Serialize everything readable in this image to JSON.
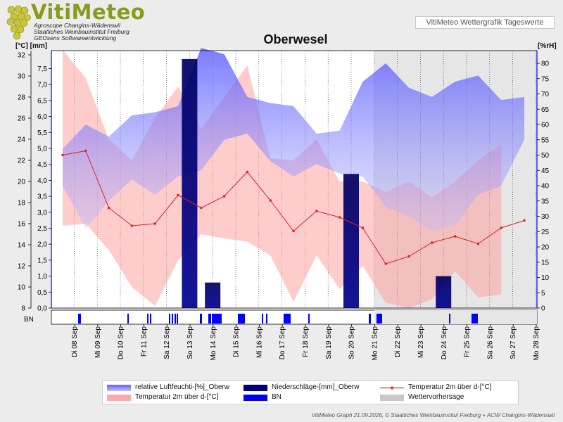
{
  "header": {
    "logo_text": "VitiMeteo",
    "logo_sub1": "Agroscope Changins-Wädenswil",
    "logo_sub2": "Staatliches Weinbauinstitut Freiburg",
    "logo_sub3": "GEOsens Softwareentwicklung",
    "app_title": "VitiMeteo Wettergrafik Tageswerte"
  },
  "footer": "VitiMeteo Graph 21.09.2026, © Staatliches Weinbauinstitut Freiburg + ACW Changins-Wädenswil",
  "chart_data": {
    "type": "combined",
    "title": "Oberwesel",
    "units": {
      "temp_precip": "[°C] [mm]",
      "humidity": "[%rH]"
    },
    "y_temp_ticks": [
      8,
      10,
      12,
      14,
      16,
      18,
      20,
      22,
      24,
      26,
      28,
      30,
      32
    ],
    "y_precip_ticks": [
      "0,0",
      "0,5",
      "1,0",
      "1,5",
      "2,0",
      "2,5",
      "3,0",
      "3,5",
      "4,0",
      "4,5",
      "5,0",
      "5,5",
      "6,0",
      "6,5",
      "7,0",
      "7,5"
    ],
    "y_hum_ticks": [
      0,
      5,
      10,
      15,
      20,
      25,
      30,
      35,
      40,
      45,
      50,
      55,
      60,
      65,
      70,
      75,
      80
    ],
    "x_labels": [
      "Di 08 Sep",
      "Mi 09 Sep",
      "Do 10 Sep",
      "Fr 11 Sep",
      "Sa 12 Sep",
      "So 13 Sep",
      "Mo 14 Sep",
      "Di 15 Sep",
      "Mi 16 Sep",
      "Do 17 Sep",
      "Fr 18 Sep",
      "Sa 19 Sep",
      "So 20 Sep",
      "Mo 21 Sep",
      "Di 22 Sep",
      "Mi 23 Sep",
      "Do 24 Sep",
      "Fr 25 Sep",
      "Sa 26 Sep",
      "So 27 Sep",
      "Mo 28 Sep"
    ],
    "days": [
      "08",
      "09",
      "10",
      "11",
      "12",
      "13",
      "14",
      "15",
      "16",
      "17",
      "18",
      "19",
      "20",
      "21",
      "22",
      "23",
      "24",
      "25",
      "26",
      "27"
    ],
    "humidity_max": [
      52,
      60,
      56,
      63,
      64,
      66,
      85,
      83,
      69,
      67,
      66,
      57,
      58,
      74,
      80,
      72,
      69,
      74,
      76,
      68,
      69
    ],
    "humidity_min": [
      40,
      26,
      35,
      42,
      37,
      43,
      45,
      55,
      57,
      48,
      43,
      47,
      44,
      43,
      33,
      30,
      25,
      27,
      37,
      40,
      55
    ],
    "temp_max": [
      32.5,
      29.8,
      24.0,
      22.0,
      26.0,
      29.0,
      25.0,
      28.0,
      31.0,
      22.2,
      22.0,
      24.0,
      20.0,
      20.0,
      19.0,
      20.0,
      18.5,
      20.0,
      22.0,
      23.5
    ],
    "temp_min": [
      15.8,
      16.0,
      13.5,
      10.0,
      8.2,
      12.5,
      15.0,
      14.6,
      14.3,
      13.0,
      8.6,
      13.0,
      9.8,
      12.0,
      8.5,
      8.0,
      8.8,
      11.5,
      9.0,
      9.3
    ],
    "temp_mean": [
      22.5,
      22.9,
      17.5,
      15.8,
      16.0,
      18.7,
      17.5,
      18.6,
      20.9,
      18.2,
      15.3,
      17.2,
      16.6,
      15.6,
      12.2,
      12.9,
      14.2,
      14.8,
      14.1,
      15.6
    ],
    "temp_mean_extra": 16.3,
    "precipitation_mm": [
      {
        "day": "14",
        "value": 7.8
      },
      {
        "day": "15",
        "value": 0.8
      },
      {
        "day": "21",
        "value": 4.2
      },
      {
        "day": "25",
        "value": 1.0
      }
    ],
    "leaf_wetness_bn": "BN",
    "forecast_from": "22",
    "legend": [
      {
        "label": "relative Luftfeuchti-[%]_Oberw",
        "color": "#8080ff"
      },
      {
        "label": "Niederschläge-[mm]_Oberw",
        "color": "#000080"
      },
      {
        "label": "Temperatur 2m über d-[°C]",
        "color": "#e03030"
      },
      {
        "label": "Temperatur 2m über d-[°C]",
        "color": "#ffaaaa"
      },
      {
        "label": "BN",
        "color": "#0000ff"
      },
      {
        "label": "Wettervorhersage",
        "color": "#c8c8c8"
      }
    ]
  }
}
